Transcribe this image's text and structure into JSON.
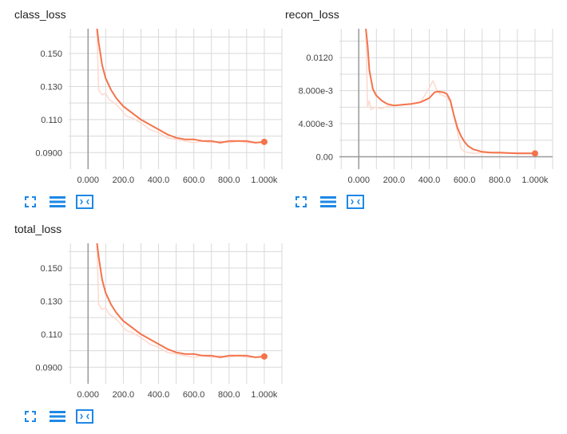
{
  "theme": {
    "smoothed_color": "#f4734b",
    "raw_color": "#fdd9cf",
    "grid_color": "#d9d9d9",
    "axis_color": "#999999",
    "icon_color": "#1e88e5"
  },
  "toolbar": {
    "icons": [
      "fit-domain-icon",
      "log-scale-icon",
      "expand-chart-icon"
    ]
  },
  "chart_data": [
    {
      "id": "class_loss",
      "title": "class_loss",
      "type": "line",
      "xlabel": "",
      "ylabel": "",
      "xlim": [
        -110,
        1100
      ],
      "ylim": [
        0.08,
        0.165
      ],
      "xticks": [
        0,
        200,
        400,
        600,
        800,
        1000
      ],
      "xtick_labels": [
        "0.000",
        "200.0",
        "400.0",
        "600.0",
        "800.0",
        "1.000k"
      ],
      "yticks": [
        0.09,
        0.11,
        0.13,
        0.15
      ],
      "ytick_labels": [
        "0.0900",
        "0.110",
        "0.130",
        "0.150"
      ],
      "grid": true,
      "series": [
        {
          "role": "raw",
          "x": [
            50,
            60,
            80,
            100,
            120,
            150,
            180,
            200,
            220,
            250,
            300,
            350,
            400,
            450,
            500,
            550,
            600,
            650,
            700,
            750,
            800,
            850,
            900,
            950,
            1000
          ],
          "y": [
            0.166,
            0.128,
            0.125,
            0.126,
            0.122,
            0.12,
            0.117,
            0.114,
            0.112,
            0.111,
            0.108,
            0.104,
            0.102,
            0.099,
            0.098,
            0.097,
            0.096,
            0.097,
            0.096,
            0.097,
            0.096,
            0.097,
            0.096,
            0.096,
            0.096
          ]
        },
        {
          "role": "smoothed",
          "x": [
            50,
            60,
            80,
            100,
            130,
            160,
            200,
            250,
            300,
            350,
            400,
            450,
            500,
            550,
            600,
            650,
            700,
            750,
            800,
            850,
            900,
            950,
            1000
          ],
          "y": [
            0.166,
            0.157,
            0.143,
            0.135,
            0.128,
            0.123,
            0.118,
            0.114,
            0.11,
            0.107,
            0.104,
            0.101,
            0.099,
            0.098,
            0.098,
            0.097,
            0.097,
            0.096,
            0.097,
            0.097,
            0.097,
            0.096,
            0.0965
          ]
        }
      ]
    },
    {
      "id": "recon_loss",
      "title": "recon_loss",
      "type": "line",
      "xlabel": "",
      "ylabel": "",
      "xlim": [
        -110,
        1100
      ],
      "ylim": [
        -0.0015,
        0.0155
      ],
      "xticks": [
        0,
        200,
        400,
        600,
        800,
        1000
      ],
      "xtick_labels": [
        "0.000",
        "200.0",
        "400.0",
        "600.0",
        "800.0",
        "1.000k"
      ],
      "yticks": [
        0,
        0.004,
        0.008,
        0.012
      ],
      "ytick_labels": [
        "0.00",
        "4.000e-3",
        "8.000e-3",
        "0.0120"
      ],
      "grid": true,
      "series": [
        {
          "role": "raw",
          "x": [
            40,
            50,
            60,
            70,
            80,
            100,
            130,
            160,
            200,
            250,
            300,
            350,
            400,
            420,
            440,
            460,
            480,
            500,
            520,
            540,
            560,
            580,
            600,
            650,
            700,
            800,
            900,
            1000
          ],
          "y": [
            0.0155,
            0.006,
            0.0068,
            0.0057,
            0.0059,
            0.006,
            0.0058,
            0.0061,
            0.0062,
            0.0063,
            0.0064,
            0.0066,
            0.0083,
            0.0092,
            0.0082,
            0.0076,
            0.0074,
            0.0072,
            0.0066,
            0.005,
            0.003,
            0.001,
            0.0006,
            0.0004,
            0.0005,
            0.0004,
            0.0005,
            0.0004
          ]
        },
        {
          "role": "smoothed",
          "x": [
            40,
            50,
            60,
            80,
            100,
            130,
            160,
            200,
            250,
            300,
            350,
            400,
            430,
            450,
            480,
            500,
            520,
            540,
            560,
            580,
            600,
            620,
            650,
            700,
            750,
            800,
            900,
            1000
          ],
          "y": [
            0.0155,
            0.0135,
            0.0105,
            0.0082,
            0.0074,
            0.0068,
            0.0064,
            0.0062,
            0.0063,
            0.0064,
            0.0066,
            0.0071,
            0.0078,
            0.0079,
            0.0078,
            0.0076,
            0.0068,
            0.005,
            0.0035,
            0.0025,
            0.0018,
            0.0013,
            0.0009,
            0.0006,
            0.0005,
            0.0005,
            0.0004,
            0.0004
          ]
        }
      ]
    },
    {
      "id": "total_loss",
      "title": "total_loss",
      "type": "line",
      "xlabel": "",
      "ylabel": "",
      "xlim": [
        -110,
        1100
      ],
      "ylim": [
        0.08,
        0.165
      ],
      "xticks": [
        0,
        200,
        400,
        600,
        800,
        1000
      ],
      "xtick_labels": [
        "0.000",
        "200.0",
        "400.0",
        "600.0",
        "800.0",
        "1.000k"
      ],
      "yticks": [
        0.09,
        0.11,
        0.13,
        0.15
      ],
      "ytick_labels": [
        "0.0900",
        "0.110",
        "0.130",
        "0.150"
      ],
      "grid": true,
      "series": [
        {
          "role": "raw",
          "x": [
            50,
            60,
            80,
            100,
            120,
            150,
            180,
            200,
            220,
            250,
            300,
            350,
            400,
            450,
            500,
            550,
            600,
            650,
            700,
            750,
            800,
            850,
            900,
            950,
            1000
          ],
          "y": [
            0.166,
            0.128,
            0.125,
            0.126,
            0.122,
            0.12,
            0.117,
            0.114,
            0.112,
            0.111,
            0.108,
            0.104,
            0.102,
            0.099,
            0.098,
            0.097,
            0.096,
            0.097,
            0.096,
            0.097,
            0.096,
            0.097,
            0.096,
            0.096,
            0.096
          ]
        },
        {
          "role": "smoothed",
          "x": [
            50,
            60,
            80,
            100,
            130,
            160,
            200,
            250,
            300,
            350,
            400,
            450,
            500,
            550,
            600,
            650,
            700,
            750,
            800,
            850,
            900,
            950,
            1000
          ],
          "y": [
            0.166,
            0.157,
            0.143,
            0.135,
            0.128,
            0.123,
            0.118,
            0.114,
            0.11,
            0.107,
            0.104,
            0.101,
            0.099,
            0.098,
            0.098,
            0.097,
            0.097,
            0.096,
            0.097,
            0.097,
            0.097,
            0.096,
            0.0965
          ]
        }
      ]
    }
  ]
}
